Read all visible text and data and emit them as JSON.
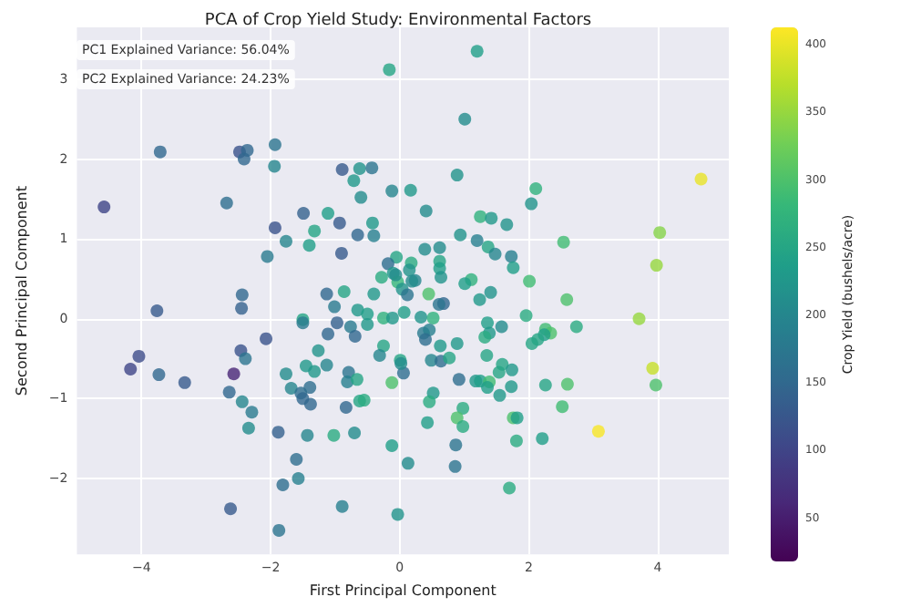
{
  "chart_data": {
    "type": "scatter",
    "title": "PCA of Crop Yield Study: Environmental Factors",
    "xlabel": "First Principal Component",
    "ylabel": "Second Principal Component",
    "clabel": "Crop Yield (bushels/acre)",
    "annotations": [
      "PC1 Explained Variance: 56.04%",
      "PC2 Explained Variance: 24.23%"
    ],
    "xlim": [
      -5,
      5.1
    ],
    "xticks": [
      -4,
      -2,
      0,
      2,
      4
    ],
    "ylim": [
      -2.95,
      3.65
    ],
    "yticks": [
      -2,
      -1,
      0,
      1,
      2,
      3
    ],
    "clim": [
      18,
      413
    ],
    "cticks": [
      50,
      100,
      150,
      200,
      250,
      300,
      350,
      400
    ],
    "grid": true,
    "marker": "circle",
    "x": [
      -0.16,
      -3.71,
      -2.48,
      -2.36,
      -2.41,
      -1.93,
      -1.94,
      -4.58,
      -2.68,
      -0.89,
      -0.62,
      -0.43,
      -0.71,
      -0.6,
      -0.12,
      -1.49,
      -1.11,
      -0.93,
      -0.42,
      -1.93,
      -1.32,
      -1.76,
      -1.4,
      -0.65,
      -0.4,
      -0.9,
      -2.05,
      -0.05,
      -0.18,
      -0.1,
      -0.28,
      -0.03,
      -2.44,
      -1.13,
      -0.86,
      -0.4,
      1.2,
      1.01,
      0.89,
      0.17,
      2.11,
      2.04,
      4.67,
      0.41,
      1.25,
      1.42,
      1.66,
      0.94,
      1.2,
      1.37,
      0.39,
      0.62,
      2.54,
      4.03,
      1.48,
      1.73,
      1.76,
      3.98,
      0.18,
      0.62,
      0.62,
      0.15,
      -0.06,
      0.64,
      0.24,
      0.19,
      1.11,
      1.01,
      0.04,
      2.01,
      0.45,
      0.12,
      1.41,
      1.24,
      2.59,
      0.68,
      0.61,
      -3.76,
      -2.45,
      -1.01,
      -0.65,
      -0.5,
      -1.5,
      -1.5,
      -0.97,
      -0.76,
      -0.5,
      -0.25,
      -0.11,
      0.07,
      -2.07,
      -1.11,
      -0.69,
      -4.04,
      -4.17,
      -3.73,
      -3.33,
      -2.46,
      -2.39,
      -2.57,
      -1.26,
      -0.25,
      -0.31,
      0.01,
      -1.45,
      -1.13,
      -1.32,
      -1.76,
      -0.79,
      -0.81,
      -0.66,
      -0.12,
      0.06,
      -1.68,
      -1.53,
      -1.5,
      -1.39,
      -1.38,
      -2.64,
      -2.44,
      -2.29,
      -2.34,
      -0.83,
      -0.62,
      -0.55,
      -1.88,
      -1.43,
      -1.02,
      -0.7,
      -0.12,
      -1.6,
      -1.81,
      -1.57,
      -2.62,
      -0.89,
      -1.87,
      -0.03,
      0.33,
      0.52,
      0.37,
      0.46,
      0.4,
      1.36,
      1.39,
      1.58,
      1.32,
      1.96,
      2.26,
      2.34,
      2.24,
      2.14,
      2.05,
      2.74,
      3.71,
      3.92,
      3.97,
      0.63,
      0.89,
      0.02,
      0.49,
      0.64,
      0.77,
      1.35,
      1.59,
      1.54,
      1.74,
      0.92,
      1.18,
      1.25,
      1.39,
      1.36,
      1.73,
      2.26,
      2.6,
      0.52,
      1.55,
      0.46,
      0.98,
      0.89,
      0.98,
      0.43,
      1.76,
      1.82,
      2.52,
      3.08,
      1.81,
      2.21,
      0.87,
      0.13,
      0.86,
      1.7
    ],
    "values": [
      3.12,
      2.09,
      2.09,
      2.11,
      2.0,
      2.18,
      1.91,
      1.4,
      1.45,
      1.87,
      1.88,
      1.89,
      1.73,
      1.52,
      1.6,
      1.32,
      1.32,
      1.2,
      1.2,
      1.14,
      1.1,
      0.97,
      0.92,
      1.05,
      1.04,
      0.82,
      0.78,
      0.77,
      0.69,
      0.57,
      0.52,
      0.46,
      0.3,
      0.31,
      0.34,
      0.31,
      3.35,
      2.5,
      1.8,
      1.61,
      1.63,
      1.44,
      1.75,
      1.35,
      1.28,
      1.26,
      1.18,
      1.05,
      0.98,
      0.9,
      0.87,
      0.89,
      0.96,
      1.08,
      0.81,
      0.78,
      0.64,
      0.67,
      0.7,
      0.72,
      0.63,
      0.61,
      0.55,
      0.52,
      0.48,
      0.47,
      0.49,
      0.44,
      0.37,
      0.47,
      0.31,
      0.3,
      0.33,
      0.24,
      0.24,
      0.19,
      0.18,
      0.1,
      0.13,
      0.15,
      0.11,
      0.06,
      -0.01,
      -0.05,
      -0.05,
      -0.1,
      -0.07,
      0.01,
      0.01,
      0.08,
      -0.25,
      -0.19,
      -0.22,
      -0.47,
      -0.63,
      -0.7,
      -0.8,
      -0.4,
      -0.5,
      -0.69,
      -0.4,
      -0.34,
      -0.46,
      -0.52,
      -0.59,
      -0.58,
      -0.66,
      -0.69,
      -0.67,
      -0.79,
      -0.76,
      -0.8,
      -0.68,
      -0.87,
      -0.93,
      -1.0,
      -0.86,
      -1.07,
      -0.92,
      -1.04,
      -1.17,
      -1.37,
      -1.11,
      -1.03,
      -1.02,
      -1.42,
      -1.46,
      -1.46,
      -1.43,
      -1.59,
      -1.76,
      -2.08,
      -2.0,
      -2.38,
      -2.35,
      -2.65,
      -2.45,
      0.02,
      0.01,
      -0.18,
      -0.14,
      -0.26,
      -0.05,
      -0.18,
      -0.1,
      -0.23,
      0.04,
      -0.13,
      -0.18,
      -0.2,
      -0.26,
      -0.31,
      -0.1,
      0.0,
      -0.62,
      -0.83,
      -0.34,
      -0.31,
      -0.56,
      -0.52,
      -0.53,
      -0.49,
      -0.46,
      -0.57,
      -0.67,
      -0.64,
      -0.76,
      -0.78,
      -0.78,
      -0.79,
      -0.86,
      -0.85,
      -0.83,
      -0.82,
      -0.93,
      -0.96,
      -1.04,
      -1.12,
      -1.24,
      -1.35,
      -1.3,
      -1.24,
      -1.24,
      -1.1,
      -1.41,
      -1.53,
      -1.5,
      -1.58,
      -1.81,
      -1.85,
      -2.12
    ],
    "cvalues": [
      250,
      150,
      120,
      150,
      150,
      170,
      200,
      100,
      160,
      130,
      220,
      170,
      230,
      210,
      200,
      140,
      240,
      130,
      230,
      120,
      250,
      200,
      240,
      150,
      190,
      130,
      180,
      250,
      160,
      230,
      260,
      280,
      150,
      150,
      250,
      230,
      240,
      210,
      220,
      230,
      270,
      220,
      400,
      210,
      270,
      230,
      220,
      220,
      190,
      250,
      210,
      210,
      290,
      340,
      200,
      190,
      240,
      350,
      260,
      250,
      240,
      220,
      210,
      220,
      200,
      210,
      270,
      240,
      220,
      290,
      300,
      170,
      220,
      230,
      300,
      150,
      170,
      130,
      140,
      180,
      230,
      240,
      250,
      180,
      140,
      180,
      230,
      270,
      230,
      240,
      120,
      150,
      150,
      110,
      100,
      150,
      130,
      120,
      170,
      60,
      220,
      250,
      200,
      250,
      230,
      200,
      230,
      210,
      170,
      190,
      250,
      300,
      160,
      200,
      160,
      150,
      160,
      150,
      150,
      200,
      180,
      210,
      150,
      250,
      260,
      140,
      200,
      260,
      210,
      240,
      160,
      160,
      190,
      130,
      190,
      170,
      220,
      220,
      270,
      180,
      190,
      160,
      240,
      230,
      210,
      260,
      260,
      290,
      300,
      240,
      250,
      250,
      260,
      350,
      380,
      300,
      230,
      230,
      210,
      200,
      160,
      250,
      250,
      250,
      250,
      230,
      160,
      230,
      240,
      290,
      240,
      230,
      250,
      300,
      230,
      230,
      260,
      260,
      300,
      260,
      240,
      300,
      240,
      290,
      410,
      260,
      240,
      170,
      210,
      170,
      260
    ]
  }
}
